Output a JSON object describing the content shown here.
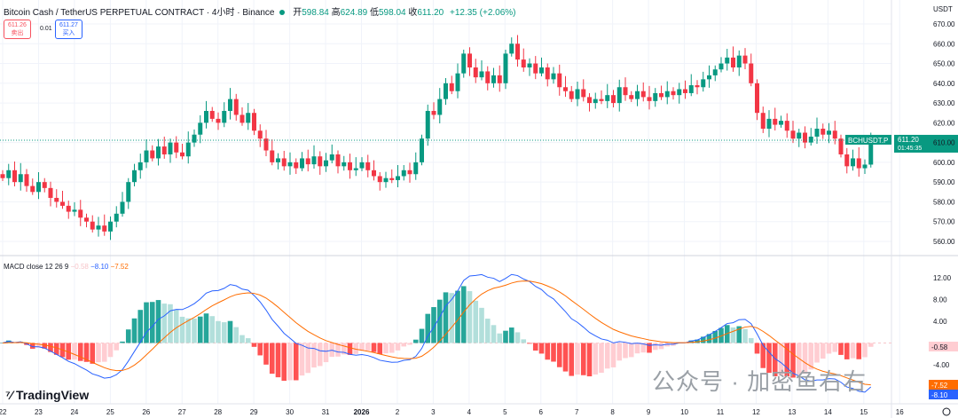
{
  "header": {
    "title": "Bitcoin Cash / TetherUS PERPETUAL CONTRACT · 4小时 · Binance",
    "open_label": "开",
    "open": "598.84",
    "high_label": "高",
    "high": "624.89",
    "low_label": "低",
    "low": "598.04",
    "close_label": "收",
    "close": "611.20",
    "change": "+12.35 (+2.06%)"
  },
  "trade": {
    "sell_price": "611.26",
    "sell_label": "卖出",
    "spread": "0.01",
    "buy_price": "611.27",
    "buy_label": "买入"
  },
  "macd_legend": {
    "name": "MACD close 12 26 9",
    "hist": "−0.58",
    "macd": "−8.10",
    "signal": "−7.52"
  },
  "branding": {
    "logo": "TradingView",
    "watermark": "公众号 · 加密鱼右右"
  },
  "colors": {
    "up": "#089981",
    "down": "#f23645",
    "macd": "#2962ff",
    "signal": "#ff6d00"
  },
  "chart_data": [
    {
      "type": "candlestick",
      "symbol": "BCHUSDT.P",
      "currency": "USDT",
      "ylim": [
        555,
        675
      ],
      "yticks": [
        "670.00",
        "660.00",
        "650.00",
        "640.00",
        "630.00",
        "620.00",
        "610.00",
        "600.00",
        "590.00",
        "580.00",
        "570.00",
        "560.00"
      ],
      "last_price": "611.20",
      "countdown": "01:45:35",
      "xticks": [
        "22",
        "23",
        "24",
        "25",
        "26",
        "27",
        "28",
        "29",
        "30",
        "31",
        "2026",
        "2",
        "3",
        "4",
        "5",
        "6",
        "7",
        "8",
        "9",
        "10",
        "11",
        "12",
        "13",
        "14",
        "15",
        "16"
      ],
      "closes": [
        592,
        596,
        590,
        594,
        588,
        585,
        590,
        587,
        582,
        580,
        578,
        575,
        576,
        572,
        570,
        566,
        568,
        565,
        570,
        574,
        580,
        590,
        596,
        600,
        606,
        602,
        608,
        604,
        610,
        605,
        603,
        610,
        614,
        620,
        626,
        622,
        620,
        626,
        632,
        624,
        620,
        625,
        616,
        612,
        606,
        600,
        602,
        598,
        600,
        597,
        602,
        599,
        603,
        598,
        601,
        604,
        598,
        600,
        596,
        597,
        600,
        596,
        593,
        590,
        592,
        591,
        593,
        596,
        594,
        600,
        612,
        626,
        624,
        632,
        640,
        636,
        645,
        655,
        648,
        643,
        646,
        640,
        644,
        640,
        655,
        660,
        652,
        648,
        650,
        645,
        648,
        642,
        645,
        638,
        636,
        632,
        637,
        633,
        630,
        632,
        631,
        634,
        630,
        638,
        634,
        632,
        636,
        633,
        631,
        635,
        633,
        636,
        634,
        637,
        635,
        639,
        638,
        642,
        644,
        647,
        650,
        653,
        648,
        654,
        650,
        640,
        625,
        617,
        622,
        619,
        621,
        616,
        612,
        615,
        610,
        613,
        617,
        614,
        616,
        612,
        604,
        598,
        602,
        597,
        598.84,
        611.2
      ]
    },
    {
      "type": "bar+line",
      "title": "MACD close 12 26 9",
      "series": [
        "Histogram",
        "MACD",
        "Signal"
      ],
      "ylim": [
        -9,
        14
      ],
      "yticks": [
        "12.00",
        "8.00",
        "4.00",
        "-4.00"
      ],
      "last_values": {
        "hist": "-0.58",
        "macd": "-8.10",
        "signal": "-7.52"
      }
    }
  ]
}
